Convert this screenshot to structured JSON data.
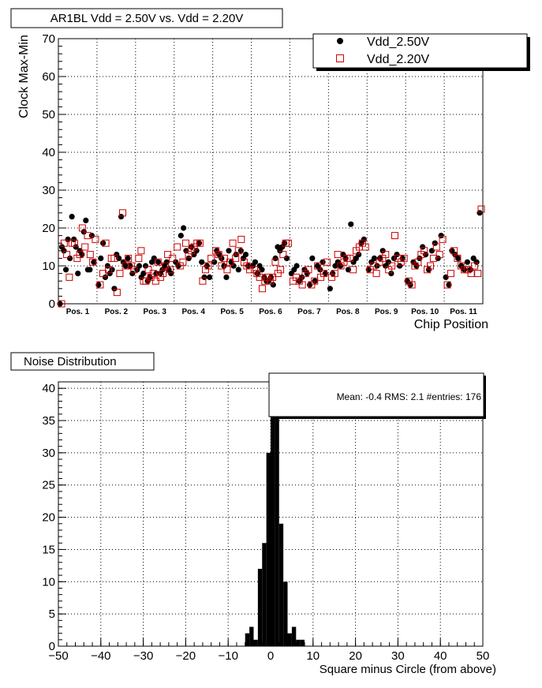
{
  "chart_data": [
    {
      "type": "scatter",
      "title": "AR1BL  Vdd = 2.50V vs. Vdd = 2.20V",
      "ylabel": "Clock Max-Min",
      "xlabel": "Chip Position",
      "ylim": [
        0,
        70
      ],
      "yticks": [
        0,
        10,
        20,
        30,
        40,
        50,
        60,
        70
      ],
      "grid": true,
      "legend_position": "top-right",
      "categories": [
        "Pos. 1",
        "Pos. 2",
        "Pos. 3",
        "Pos. 4",
        "Pos. 5",
        "Pos. 6",
        "Pos. 7",
        "Pos. 8",
        "Pos. 9",
        "Pos. 10",
        "Pos. 11"
      ],
      "series": [
        {
          "name": "Vdd_2.50V",
          "marker": "filled-circle",
          "color": "#000000",
          "groups": [
            [
              0,
              15,
              14,
              9,
              17,
              12,
              23,
              17,
              15,
              8,
              14,
              13,
              19,
              22,
              9,
              9,
              18,
              11
            ],
            [
              5,
              12,
              16,
              7,
              10,
              8,
              9,
              4,
              13,
              12,
              23,
              11,
              10,
              12,
              10,
              8
            ],
            [
              9,
              10,
              7,
              8,
              10,
              6,
              7,
              11,
              12,
              8,
              11,
              8,
              9,
              10,
              11,
              9,
              8
            ],
            [
              11,
              10,
              18,
              20,
              14,
              12,
              15,
              13,
              14,
              16,
              11,
              7,
              10,
              7
            ],
            [
              11,
              14,
              13,
              12,
              10,
              7,
              14,
              11,
              10,
              13,
              9,
              14,
              12,
              13,
              10
            ],
            [
              10,
              11,
              8,
              10,
              9,
              7,
              6,
              6,
              7,
              5,
              12,
              15,
              14,
              15,
              16,
              12
            ],
            [
              8,
              9,
              10,
              6,
              7,
              9,
              8,
              5,
              12,
              6,
              10,
              9,
              11,
              8
            ],
            [
              4,
              8,
              10,
              11,
              10,
              13,
              12,
              9,
              21,
              11,
              12,
              13,
              16,
              17
            ],
            [
              9,
              11,
              12,
              10,
              12,
              14,
              10,
              11,
              8,
              12,
              13,
              10,
              12
            ],
            [
              6,
              5,
              11,
              10,
              12,
              15,
              13,
              9,
              14,
              16,
              12,
              18
            ],
            [
              7,
              5,
              14,
              13,
              12,
              10,
              9,
              11,
              9,
              12,
              11,
              24
            ]
          ]
        },
        {
          "name": "Vdd_2.20V",
          "marker": "open-square",
          "color": "#cc0000",
          "groups": [
            [
              0,
              16,
              13,
              7,
              16,
              16,
              12,
              13,
              20,
              15,
              18,
              13,
              11,
              17
            ],
            [
              5,
              8,
              16,
              9,
              12,
              12,
              3,
              8,
              24,
              10,
              12,
              10,
              9
            ],
            [
              12,
              14,
              6,
              6,
              9,
              7,
              8,
              6,
              11,
              7,
              8,
              10,
              13,
              9,
              12
            ],
            [
              15,
              10,
              11,
              16,
              13,
              14,
              15,
              16,
              16,
              6,
              9,
              10,
              12
            ],
            [
              14,
              13,
              10,
              12,
              9,
              11,
              16,
              12,
              14,
              17,
              11,
              10,
              9
            ],
            [
              9,
              8,
              7,
              4,
              6,
              7,
              6,
              7,
              11,
              8,
              9,
              13,
              16,
              16
            ],
            [
              6,
              7,
              6,
              5,
              8,
              9,
              5,
              6,
              10,
              7,
              8,
              11
            ],
            [
              7,
              8,
              13,
              10,
              11,
              12,
              12,
              9,
              14,
              15,
              16,
              15
            ],
            [
              9,
              10,
              8,
              11,
              12,
              13,
              9,
              10,
              18,
              12,
              11,
              12
            ],
            [
              6,
              5,
              10,
              11,
              13,
              14,
              9,
              10,
              12,
              15,
              13,
              17
            ],
            [
              5,
              8,
              14,
              12,
              10,
              9,
              9,
              8,
              10,
              8,
              25
            ]
          ]
        }
      ]
    },
    {
      "type": "bar",
      "title": "Noise Distribution",
      "xlabel": "Square minus Circle (from above)",
      "ylabel": "",
      "xlim": [
        -50,
        50
      ],
      "ylim": [
        0,
        41
      ],
      "xticks": [
        -50,
        -40,
        -30,
        -20,
        -10,
        0,
        10,
        20,
        30,
        40,
        50
      ],
      "yticks": [
        0,
        5,
        10,
        15,
        20,
        25,
        30,
        35,
        40
      ],
      "bin_width": 1,
      "bin_edges_start": -6,
      "counts": [
        2,
        3,
        1,
        12,
        16,
        30,
        39,
        37,
        19,
        10,
        2,
        3,
        1,
        1
      ],
      "stats": {
        "mean": -0.4,
        "rms": 2.1,
        "entries": 176
      },
      "stats_text": "Mean:  -0.4 RMS:   2.1 #entries: 176"
    }
  ]
}
